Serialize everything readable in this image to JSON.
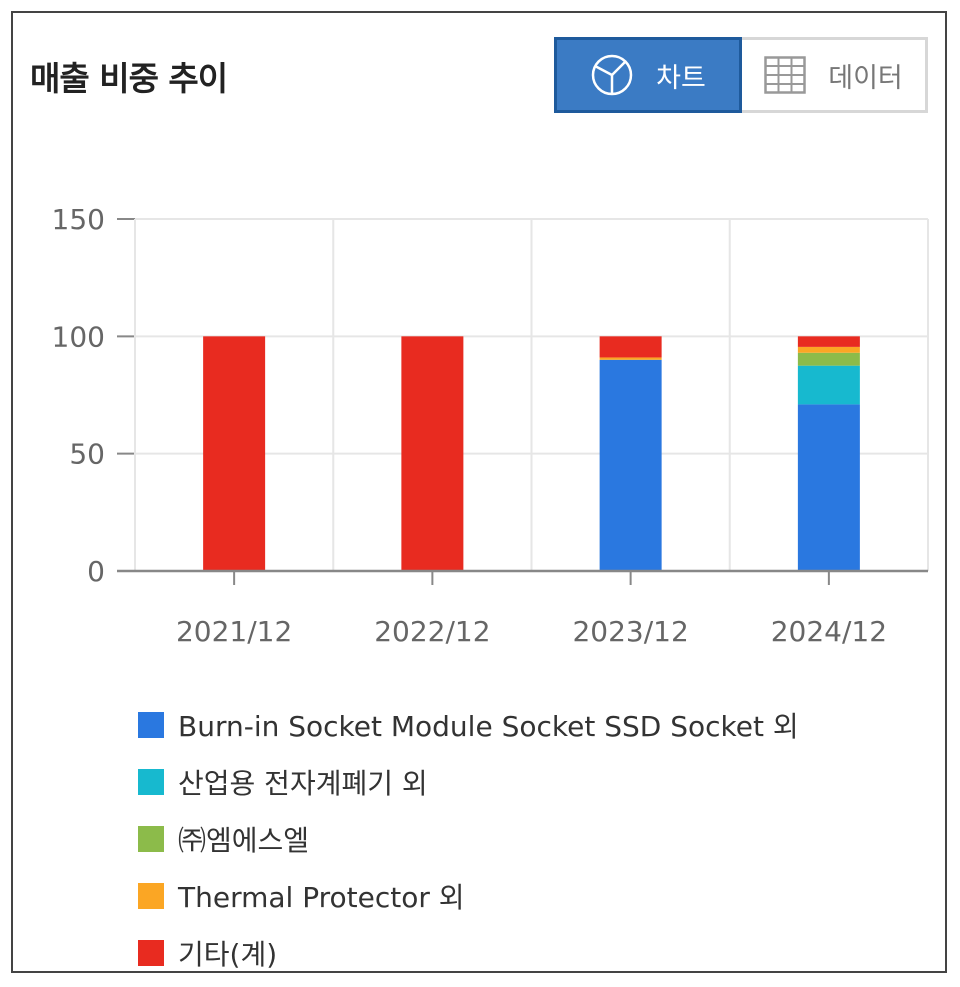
{
  "title": "매출 비중 추이",
  "toggle": {
    "chart_label": "차트",
    "data_label": "데이터"
  },
  "colors": {
    "burnin": "#2a78e0",
    "industrial": "#17b9cf",
    "mss": "#8cbb4a",
    "thermal": "#fba624",
    "other": "#e82b20"
  },
  "chart_data": {
    "type": "bar",
    "stacked": true,
    "title": "",
    "xlabel": "",
    "ylabel": "",
    "ylim": [
      0,
      150
    ],
    "yticks": [
      0,
      50,
      100,
      150
    ],
    "grid": true,
    "legend_position": "bottom",
    "categories": [
      "2021/12",
      "2022/12",
      "2023/12",
      "2024/12"
    ],
    "series": [
      {
        "name": "Burn-in Socket Module Socket SSD Socket 외",
        "color": "#2a78e0",
        "values": [
          0,
          0,
          90,
          71
        ]
      },
      {
        "name": "산업용 전자계폐기 외",
        "color": "#17b9cf",
        "values": [
          0,
          0,
          0,
          16.5
        ]
      },
      {
        "name": "㈜엠에스엘",
        "color": "#8cbb4a",
        "values": [
          0,
          0,
          0,
          5.5
        ]
      },
      {
        "name": "Thermal Protector 외",
        "color": "#fba624",
        "values": [
          0,
          0,
          1,
          2.5
        ]
      },
      {
        "name": "기타(계)",
        "color": "#e82b20",
        "values": [
          100,
          100,
          9,
          4.5
        ]
      }
    ]
  }
}
